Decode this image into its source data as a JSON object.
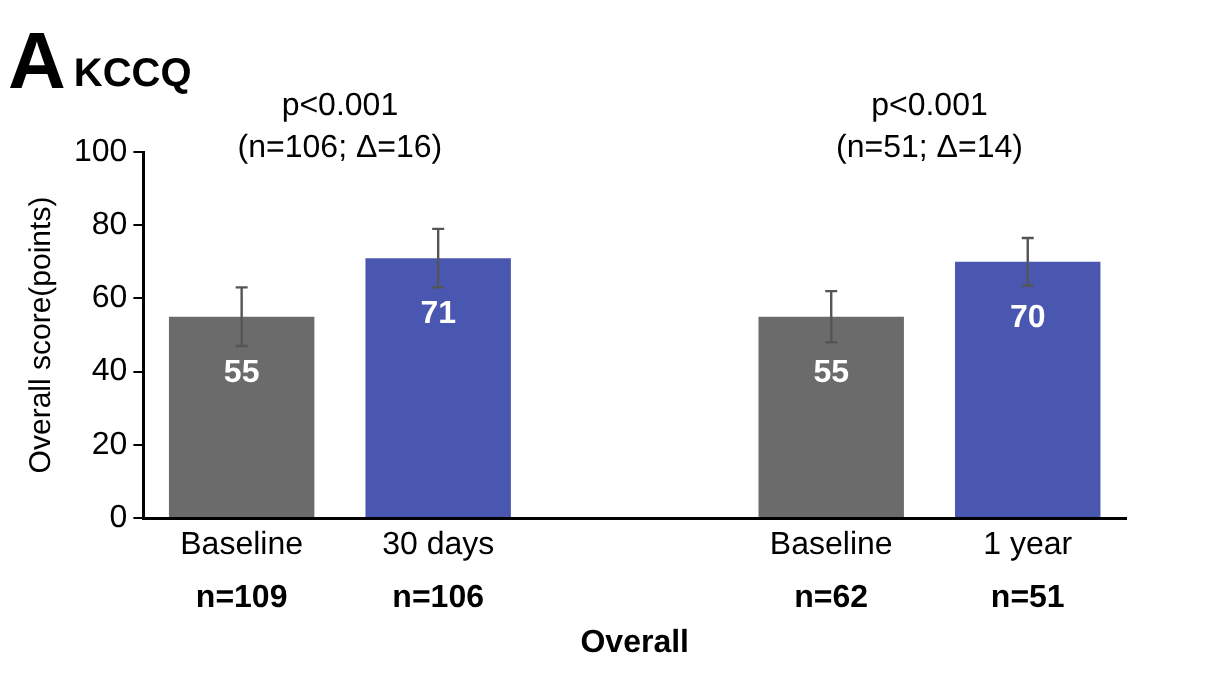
{
  "chart_data": {
    "type": "bar",
    "title": "A",
    "subtitle": "KCCQ",
    "xlabel": "Overall",
    "ylabel": "Overall score(points)",
    "categories": [
      "Baseline",
      "30 days",
      null,
      "Baseline",
      "1 year"
    ],
    "values": [
      55,
      71,
      null,
      55,
      70
    ],
    "colors": [
      "#6b6b6b",
      "#4a57b0",
      null,
      "#6b6b6b",
      "#4a57b0"
    ],
    "errors": [
      8,
      8,
      null,
      7,
      6.5
    ],
    "data_labels": true,
    "ylim": [
      0,
      100
    ],
    "yticks": [
      0,
      20,
      40,
      60,
      80,
      100
    ],
    "grid": false,
    "legend": false,
    "annotations": [
      "p<0.001\n(n=106; Δ=16)",
      "p<0.001\n(n=51; Δ=14)",
      "n=109",
      "n=106",
      "n=62",
      "n=51"
    ]
  }
}
